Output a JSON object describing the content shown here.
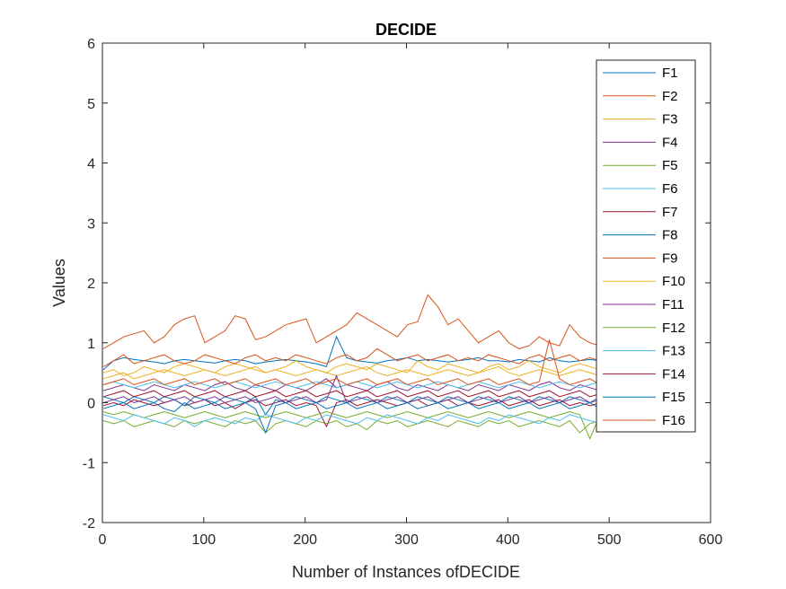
{
  "chart_data": {
    "type": "line",
    "title": "DECIDE",
    "xlabel": "Number of Instances ofDECIDE",
    "ylabel": "Values",
    "xlim": [
      0,
      600
    ],
    "ylim": [
      -2,
      6
    ],
    "xticks": [
      0,
      100,
      200,
      300,
      400,
      500,
      600
    ],
    "yticks": [
      -2,
      -1,
      0,
      1,
      2,
      3,
      4,
      5,
      6
    ],
    "xtick_labels": [
      "0",
      "100",
      "200",
      "300",
      "400",
      "500",
      "600"
    ],
    "ytick_labels": [
      "-2",
      "-1",
      "0",
      "1",
      "2",
      "3",
      "4",
      "5",
      "6"
    ],
    "grid": false,
    "legend_position": "top-right",
    "x_start": 1,
    "x_step": 10,
    "series": [
      {
        "name": "F1",
        "color": "#0072BD",
        "values": [
          0.55,
          0.7,
          0.75,
          0.72,
          0.7,
          0.68,
          0.65,
          0.7,
          0.72,
          0.7,
          0.68,
          0.66,
          0.7,
          0.72,
          0.7,
          0.65,
          0.68,
          0.7,
          0.72,
          0.7,
          0.68,
          0.65,
          0.6,
          1.1,
          0.75,
          0.7,
          0.68,
          0.66,
          0.7,
          0.72,
          0.75,
          0.7,
          0.72,
          0.7,
          0.68,
          0.7,
          0.72,
          0.75,
          0.7,
          0.7,
          0.68,
          0.72,
          0.7,
          0.68,
          0.75,
          0.7,
          0.68,
          0.7,
          0.72,
          0.7
        ]
      },
      {
        "name": "F2",
        "color": "#D95319",
        "values": [
          0.9,
          1.0,
          1.1,
          1.15,
          1.2,
          1.0,
          1.1,
          1.3,
          1.4,
          1.45,
          1.0,
          1.1,
          1.2,
          1.45,
          1.4,
          1.05,
          1.1,
          1.2,
          1.3,
          1.35,
          1.4,
          1.0,
          1.1,
          1.2,
          1.3,
          1.5,
          1.4,
          1.3,
          1.2,
          1.1,
          1.3,
          1.35,
          1.8,
          1.6,
          1.3,
          1.4,
          1.2,
          1.0,
          1.1,
          1.2,
          1.0,
          0.9,
          0.95,
          1.1,
          1.0,
          0.95,
          1.3,
          1.1,
          1.0,
          0.95
        ]
      },
      {
        "name": "F3",
        "color": "#EDB120",
        "values": [
          0.5,
          0.55,
          0.45,
          0.5,
          0.6,
          0.55,
          0.5,
          0.6,
          0.65,
          0.6,
          0.55,
          0.5,
          0.6,
          0.65,
          0.6,
          0.55,
          0.5,
          0.55,
          0.6,
          0.7,
          0.6,
          0.55,
          0.5,
          0.6,
          0.65,
          0.6,
          0.55,
          0.65,
          0.6,
          0.55,
          0.5,
          0.7,
          0.6,
          0.55,
          0.65,
          0.6,
          0.55,
          0.5,
          0.6,
          0.65,
          0.55,
          0.6,
          0.7,
          0.6,
          0.55,
          0.5,
          0.6,
          0.65,
          0.6,
          0.55
        ]
      },
      {
        "name": "F4",
        "color": "#7E2F8E",
        "values": [
          0.2,
          0.25,
          0.3,
          0.25,
          0.2,
          0.3,
          0.25,
          0.2,
          0.3,
          0.25,
          0.2,
          0.3,
          0.35,
          0.25,
          0.2,
          0.3,
          0.25,
          0.2,
          0.3,
          0.25,
          0.2,
          0.3,
          0.4,
          0.25,
          0.3,
          0.25,
          0.2,
          0.3,
          0.35,
          0.25,
          0.2,
          0.3,
          0.25,
          0.2,
          0.3,
          0.25,
          0.2,
          0.3,
          0.25,
          0.2,
          0.3,
          0.25,
          0.2,
          0.3,
          0.35,
          0.25,
          0.2,
          0.3,
          0.25,
          0.2
        ]
      },
      {
        "name": "F5",
        "color": "#77AC30",
        "values": [
          -0.3,
          -0.35,
          -0.3,
          -0.4,
          -0.35,
          -0.3,
          -0.35,
          -0.4,
          -0.3,
          -0.35,
          -0.3,
          -0.35,
          -0.4,
          -0.3,
          -0.35,
          -0.3,
          -0.5,
          -0.35,
          -0.3,
          -0.35,
          -0.4,
          -0.3,
          -0.35,
          -0.3,
          -0.4,
          -0.35,
          -0.45,
          -0.3,
          -0.35,
          -0.3,
          -0.4,
          -0.35,
          -0.3,
          -0.35,
          -0.4,
          -0.3,
          -0.35,
          -0.4,
          -0.3,
          -0.35,
          -0.3,
          -0.4,
          -0.35,
          -0.3,
          -0.35,
          -0.4,
          -0.3,
          -0.5,
          -0.35,
          -0.3
        ]
      },
      {
        "name": "F6",
        "color": "#4DBEEE",
        "values": [
          0.3,
          0.35,
          0.3,
          0.25,
          0.3,
          0.35,
          0.3,
          0.25,
          0.3,
          0.35,
          0.3,
          0.25,
          0.3,
          0.35,
          0.3,
          0.25,
          0.3,
          0.35,
          0.3,
          0.25,
          0.3,
          0.35,
          0.3,
          0.25,
          0.3,
          0.35,
          0.3,
          0.25,
          0.3,
          0.35,
          0.3,
          0.25,
          0.3,
          0.35,
          0.3,
          0.25,
          0.3,
          0.35,
          0.3,
          0.25,
          0.3,
          0.35,
          0.3,
          0.25,
          0.3,
          0.35,
          0.3,
          0.25,
          0.3,
          0.35
        ]
      },
      {
        "name": "F7",
        "color": "#A2142F",
        "values": [
          -0.05,
          0.0,
          -0.05,
          0.05,
          0.0,
          -0.05,
          0.0,
          0.05,
          -0.05,
          0.0,
          0.05,
          -0.05,
          0.0,
          -0.1,
          0.0,
          0.05,
          -0.05,
          0.0,
          0.05,
          -0.05,
          0.0,
          -0.05,
          -0.4,
          0.0,
          0.05,
          -0.05,
          0.0,
          0.05,
          0.0,
          -0.05,
          0.0,
          0.05,
          -0.05,
          0.0,
          0.05,
          -0.05,
          0.0,
          -0.05,
          0.0,
          0.05,
          -0.05,
          0.0,
          0.05,
          -0.05,
          0.0,
          0.05,
          -0.05,
          0.0,
          -0.05,
          0.0
        ]
      },
      {
        "name": "F8",
        "color": "#0072BD",
        "values": [
          0.1,
          0.05,
          0.0,
          0.1,
          0.05,
          0.0,
          0.1,
          0.05,
          -0.05,
          0.1,
          0.05,
          0.0,
          0.1,
          0.05,
          0.0,
          0.1,
          -0.2,
          0.05,
          0.0,
          0.1,
          0.05,
          0.0,
          0.1,
          0.05,
          0.0,
          0.1,
          0.05,
          0.0,
          0.1,
          0.05,
          0.0,
          0.1,
          0.05,
          0.0,
          0.1,
          0.05,
          0.0,
          0.1,
          0.05,
          0.0,
          0.1,
          0.05,
          0.0,
          0.1,
          0.05,
          0.0,
          0.1,
          0.05,
          0.0,
          0.1
        ]
      },
      {
        "name": "F9",
        "color": "#D95319",
        "values": [
          0.6,
          0.7,
          0.8,
          0.65,
          0.7,
          0.75,
          0.8,
          0.7,
          0.65,
          0.7,
          0.8,
          0.75,
          0.7,
          0.65,
          0.75,
          0.8,
          0.7,
          0.75,
          0.7,
          0.8,
          0.75,
          0.7,
          0.65,
          0.75,
          0.8,
          0.7,
          0.75,
          0.9,
          0.8,
          0.7,
          0.75,
          0.8,
          0.7,
          0.75,
          0.8,
          0.7,
          0.75,
          0.7,
          0.8,
          0.75,
          0.7,
          0.65,
          0.75,
          0.8,
          0.7,
          0.75,
          0.8,
          0.7,
          0.75,
          0.7
        ]
      },
      {
        "name": "F10",
        "color": "#EDB120",
        "values": [
          0.4,
          0.45,
          0.5,
          0.4,
          0.45,
          0.5,
          0.55,
          0.5,
          0.45,
          0.5,
          0.55,
          0.5,
          0.45,
          0.5,
          0.55,
          0.6,
          0.5,
          0.55,
          0.5,
          0.45,
          0.5,
          0.55,
          0.5,
          0.45,
          0.5,
          0.55,
          0.6,
          0.5,
          0.45,
          0.5,
          0.55,
          0.5,
          0.45,
          0.5,
          0.55,
          0.5,
          0.45,
          0.5,
          0.55,
          0.6,
          0.5,
          0.45,
          0.5,
          0.55,
          0.5,
          0.45,
          0.5,
          0.55,
          0.5,
          0.45
        ]
      },
      {
        "name": "F11",
        "color": "#7E2F8E",
        "values": [
          0.0,
          0.05,
          0.1,
          0.0,
          0.05,
          0.1,
          0.0,
          0.05,
          0.1,
          0.0,
          0.05,
          0.1,
          0.0,
          0.05,
          0.1,
          0.0,
          0.05,
          0.1,
          0.0,
          0.05,
          0.1,
          0.0,
          0.05,
          0.45,
          0.0,
          0.05,
          0.1,
          0.0,
          0.05,
          0.1,
          0.0,
          0.05,
          0.1,
          0.0,
          0.05,
          0.1,
          0.0,
          0.05,
          0.1,
          0.0,
          0.05,
          0.1,
          0.0,
          0.05,
          0.1,
          0.0,
          0.05,
          0.1,
          0.0,
          0.05
        ]
      },
      {
        "name": "F12",
        "color": "#77AC30",
        "values": [
          -0.15,
          -0.2,
          -0.15,
          -0.2,
          -0.25,
          -0.2,
          -0.15,
          -0.2,
          -0.25,
          -0.2,
          -0.15,
          -0.2,
          -0.25,
          -0.2,
          -0.15,
          -0.2,
          -0.25,
          -0.2,
          -0.15,
          -0.2,
          -0.25,
          -0.2,
          -0.15,
          -0.2,
          -0.25,
          -0.2,
          -0.15,
          -0.2,
          -0.25,
          -0.2,
          -0.15,
          -0.2,
          -0.25,
          -0.2,
          -0.15,
          -0.2,
          -0.25,
          -0.2,
          -0.15,
          -0.2,
          -0.25,
          -0.2,
          -0.15,
          -0.2,
          -0.25,
          -0.2,
          -0.15,
          -0.2,
          -0.6,
          -0.2
        ]
      },
      {
        "name": "F13",
        "color": "#4DBEEE",
        "values": [
          -0.2,
          -0.25,
          -0.3,
          -0.2,
          -0.25,
          -0.3,
          -0.35,
          -0.25,
          -0.3,
          -0.4,
          -0.3,
          -0.25,
          -0.3,
          -0.35,
          -0.25,
          -0.3,
          -0.2,
          -0.25,
          -0.3,
          -0.35,
          -0.25,
          -0.3,
          -0.2,
          -0.25,
          -0.3,
          -0.35,
          -0.25,
          -0.3,
          -0.2,
          -0.25,
          -0.3,
          -0.35,
          -0.25,
          -0.3,
          -0.2,
          -0.25,
          -0.3,
          -0.35,
          -0.25,
          -0.3,
          -0.2,
          -0.25,
          -0.3,
          -0.35,
          -0.25,
          -0.3,
          -0.2,
          -0.25,
          -0.3,
          -0.35
        ]
      },
      {
        "name": "F14",
        "color": "#A2142F",
        "values": [
          0.1,
          0.15,
          0.2,
          0.1,
          0.15,
          0.2,
          0.1,
          0.15,
          0.2,
          0.1,
          0.15,
          0.2,
          0.1,
          0.15,
          0.2,
          0.1,
          0.15,
          0.2,
          0.1,
          0.15,
          0.2,
          0.1,
          0.15,
          0.2,
          0.1,
          0.15,
          0.2,
          0.1,
          0.15,
          0.2,
          0.1,
          0.15,
          0.2,
          0.1,
          0.15,
          0.2,
          0.1,
          0.15,
          0.2,
          0.1,
          0.15,
          0.2,
          0.1,
          0.15,
          0.2,
          0.1,
          0.15,
          0.2,
          0.1,
          0.15
        ]
      },
      {
        "name": "F15",
        "color": "#0072BD",
        "values": [
          -0.1,
          -0.05,
          0.0,
          -0.1,
          -0.05,
          0.0,
          -0.1,
          -0.15,
          0.0,
          -0.1,
          -0.05,
          0.0,
          -0.1,
          -0.05,
          0.0,
          -0.1,
          -0.5,
          -0.05,
          0.0,
          -0.1,
          -0.05,
          0.0,
          -0.1,
          -0.05,
          0.0,
          -0.1,
          -0.05,
          0.0,
          -0.1,
          -0.05,
          0.0,
          -0.1,
          -0.05,
          0.0,
          -0.1,
          -0.05,
          0.0,
          -0.1,
          -0.05,
          0.0,
          -0.1,
          -0.05,
          0.0,
          -0.1,
          -0.05,
          0.0,
          -0.1,
          -0.05,
          0.0,
          -0.1
        ]
      },
      {
        "name": "F16",
        "color": "#D95319",
        "values": [
          0.3,
          0.35,
          0.4,
          0.3,
          0.35,
          0.4,
          0.3,
          0.35,
          0.4,
          0.3,
          0.35,
          0.4,
          0.3,
          0.35,
          0.4,
          0.3,
          0.35,
          0.4,
          0.3,
          0.35,
          0.4,
          0.3,
          0.35,
          0.4,
          0.3,
          0.35,
          0.4,
          0.3,
          0.35,
          0.4,
          0.3,
          0.35,
          0.4,
          0.3,
          0.35,
          0.4,
          0.3,
          0.35,
          0.4,
          0.3,
          0.35,
          0.4,
          0.3,
          0.35,
          1.05,
          0.4,
          0.3,
          0.35,
          0.4,
          0.3
        ]
      }
    ]
  }
}
